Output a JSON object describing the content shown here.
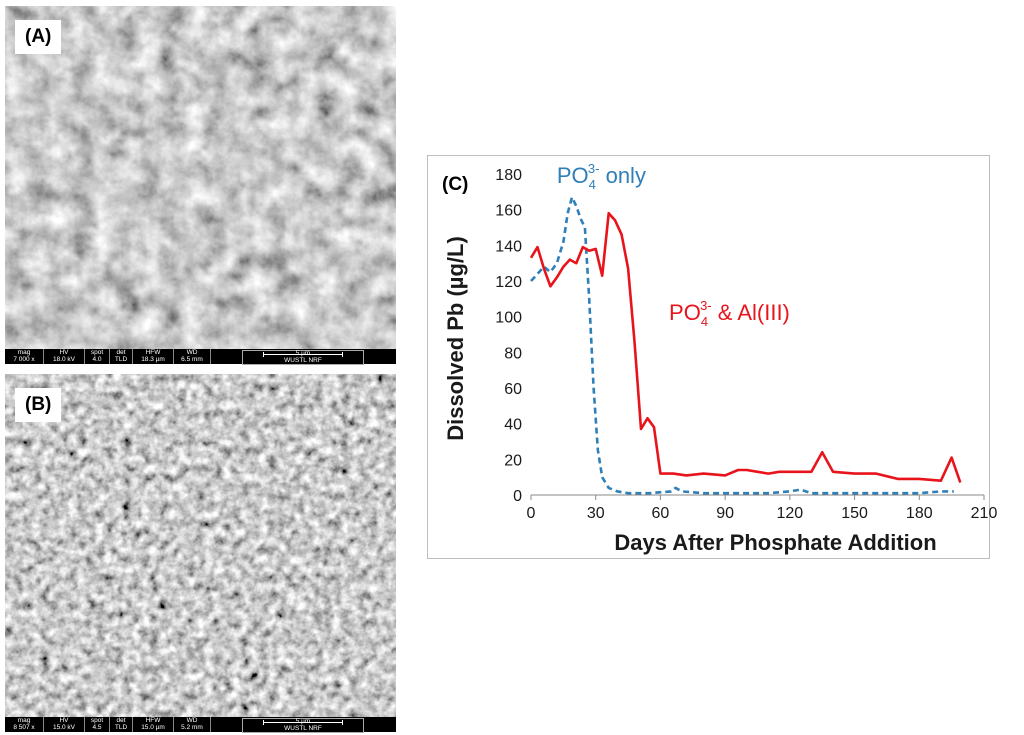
{
  "panel_a": {
    "label": "(A)",
    "infobar": {
      "mag_h": "mag",
      "mag": "7 000 x",
      "hv_h": "HV",
      "hv": "18.0 kV",
      "spot_h": "spot",
      "spot": "4.0",
      "det_h": "det",
      "det": "TLD",
      "hfw_h": "HFW",
      "hfw": "18.3 µm",
      "wd_h": "WD",
      "wd": "6.5 mm",
      "scale": "5 µm",
      "facility": "WUSTL NRF"
    }
  },
  "panel_b": {
    "label": "(B)",
    "infobar": {
      "mag_h": "mag",
      "mag": "8 507 x",
      "hv_h": "HV",
      "hv": "15.0 kV",
      "spot_h": "spot",
      "spot": "4.5",
      "det_h": "det",
      "det": "TLD",
      "hfw_h": "HFW",
      "hfw": "15.0 µm",
      "wd_h": "WD",
      "wd": "5.2 mm",
      "scale": "5 µm",
      "facility": "WUSTL NRF"
    }
  },
  "colors": {
    "phosphate_only": "#2f7fb8",
    "phosphate_al": "#e8141c",
    "sem_bg": "#6e6e6e"
  },
  "chart_data": {
    "type": "line",
    "panel_label": "(C)",
    "xlabel": "Days After Phosphate Addition",
    "ylabel": "Dissolved Pb (µg/L)",
    "xlim": [
      0,
      210
    ],
    "ylim": [
      0,
      180
    ],
    "xticks": [
      0,
      30,
      60,
      90,
      120,
      150,
      180,
      210
    ],
    "yticks": [
      0,
      20,
      40,
      60,
      80,
      100,
      120,
      140,
      160,
      180
    ],
    "grid": false,
    "series": [
      {
        "name": "PO43- only",
        "style": "dashed",
        "x": [
          0,
          3,
          6,
          9,
          12,
          15,
          17,
          19,
          21,
          23,
          25,
          27,
          29,
          31,
          33,
          36,
          40,
          45,
          55,
          65,
          67,
          70,
          80,
          90,
          100,
          110,
          120,
          125,
          130,
          140,
          150,
          160,
          170,
          180,
          190,
          196
        ],
        "y": [
          120,
          124,
          128,
          125,
          130,
          142,
          158,
          167,
          162,
          155,
          150,
          110,
          60,
          25,
          10,
          4,
          2,
          1,
          1,
          2,
          4,
          2,
          1,
          1,
          1,
          1,
          2,
          3,
          1,
          1,
          1,
          1,
          1,
          1,
          2,
          2
        ]
      },
      {
        "name": "PO43- & Al(III)",
        "style": "solid",
        "x": [
          0,
          3,
          6,
          9,
          12,
          15,
          18,
          21,
          24,
          27,
          30,
          33,
          36,
          39,
          42,
          45,
          48,
          51,
          54,
          57,
          60,
          66,
          72,
          80,
          90,
          96,
          100,
          105,
          110,
          115,
          120,
          130,
          135,
          140,
          150,
          160,
          170,
          180,
          190,
          195,
          199
        ],
        "y": [
          133,
          139,
          127,
          117,
          122,
          128,
          132,
          130,
          139,
          137,
          138,
          123,
          158,
          154,
          146,
          127,
          86,
          37,
          43,
          38,
          12,
          12,
          11,
          12,
          11,
          14,
          14,
          13,
          12,
          13,
          13,
          13,
          24,
          13,
          12,
          12,
          9,
          9,
          8,
          21,
          7
        ]
      }
    ],
    "annotations": [
      {
        "base": "PO",
        "sub": "4",
        "sup": "3-",
        "rest": " only",
        "color": "#2f7fb8",
        "x": 12,
        "y": 175
      },
      {
        "base": "PO",
        "sub": "4",
        "sup": "3-",
        "rest": " & Al(III)",
        "color": "#e8141c",
        "x": 64,
        "y": 98
      }
    ]
  }
}
